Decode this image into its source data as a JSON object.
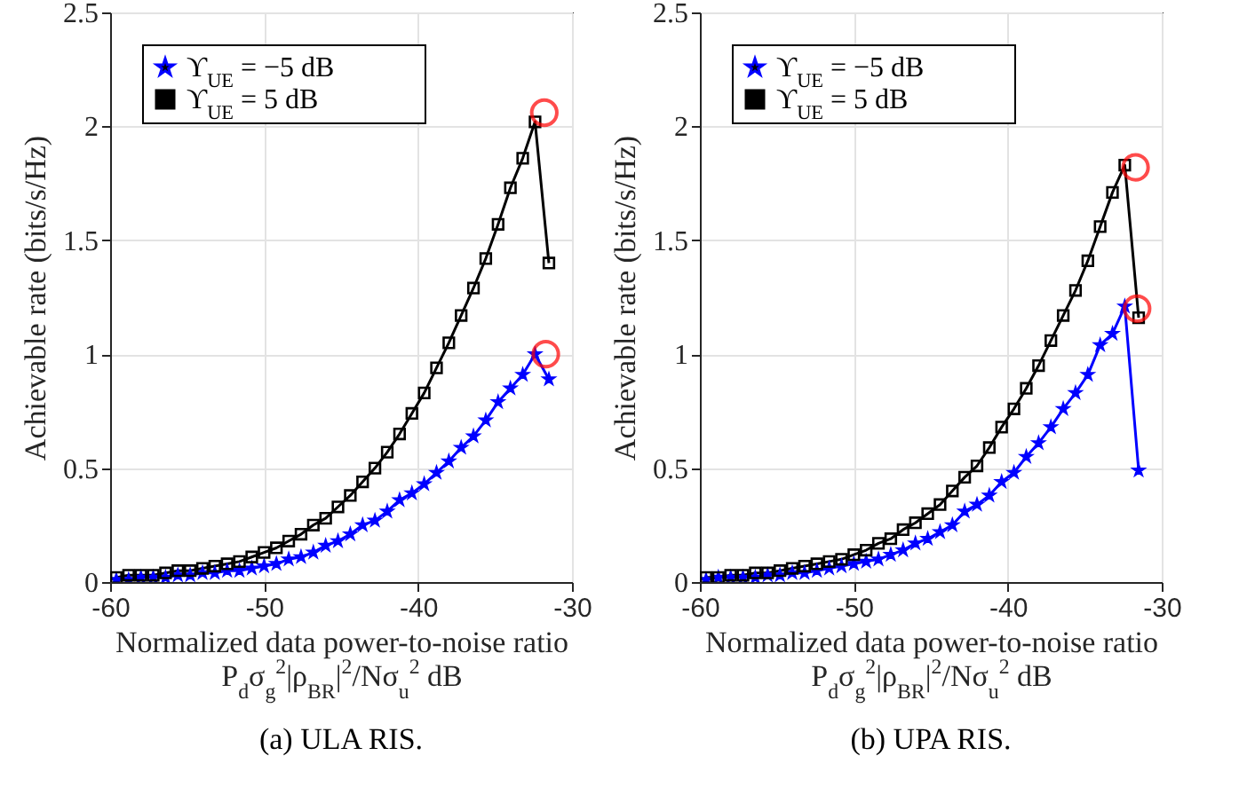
{
  "chart_data": [
    {
      "type": "line",
      "title": "(a) ULA RIS.",
      "xlabel": "Normalized data power-to-noise ratio\nP$_{d}$σ$_{g}$$^{2}$|ρ$_{BR}$|$^{2}$/Nσ$_{u}$$^{2}$ dB",
      "ylabel": "Achievable rate (bits/s/Hz)",
      "xlim": [
        -60,
        -30
      ],
      "xticks": [
        -60,
        -50,
        -40,
        -30
      ],
      "ylim": [
        0,
        2.5
      ],
      "yticks": [
        0,
        0.5,
        1,
        1.5,
        2,
        2.5
      ],
      "grid": true,
      "legend": "top left",
      "x": [
        -59.6,
        -58.8,
        -58,
        -57.2,
        -56.4,
        -55.6,
        -54.8,
        -54,
        -53.2,
        -52.4,
        -51.6,
        -50.8,
        -50,
        -49.2,
        -48.4,
        -47.6,
        -46.8,
        -46,
        -45.2,
        -44.4,
        -43.6,
        -42.8,
        -42,
        -41.2,
        -40.4,
        -39.6,
        -38.8,
        -38,
        -37.2,
        -36.4,
        -35.6,
        -34.8,
        -34,
        -33.2,
        -32.4,
        -31.5
      ],
      "series": [
        {
          "name": "ϒ$_{UE}$ = −5 dB",
          "color": "#0000ff",
          "marker": "star",
          "values": [
            0.01,
            0.01,
            0.02,
            0.02,
            0.02,
            0.03,
            0.03,
            0.04,
            0.04,
            0.05,
            0.05,
            0.06,
            0.07,
            0.08,
            0.1,
            0.11,
            0.13,
            0.16,
            0.18,
            0.21,
            0.25,
            0.27,
            0.31,
            0.36,
            0.39,
            0.43,
            0.48,
            0.53,
            0.59,
            0.64,
            0.71,
            0.79,
            0.85,
            0.91,
            1.0,
            0.89
          ]
        },
        {
          "name": "ϒ$_{UE}$ = 5 dB",
          "color": "#000000",
          "marker": "square",
          "values": [
            0.02,
            0.03,
            0.03,
            0.03,
            0.04,
            0.05,
            0.05,
            0.06,
            0.07,
            0.08,
            0.09,
            0.11,
            0.13,
            0.15,
            0.18,
            0.21,
            0.25,
            0.28,
            0.33,
            0.38,
            0.44,
            0.5,
            0.57,
            0.65,
            0.74,
            0.83,
            0.94,
            1.05,
            1.17,
            1.29,
            1.42,
            1.57,
            1.73,
            1.86,
            2.02,
            1.4
          ]
        },
        {
          "type": "scatter",
          "color": "#ff0000",
          "marker": "circle",
          "x": [
            -31.8,
            -31.7
          ],
          "values": [
            2.06,
            1.0
          ]
        }
      ]
    },
    {
      "type": "line",
      "title": "(b) UPA RIS.",
      "xlabel": "Normalized data power-to-noise ratio\nP$_{d}$σ$_{g}$$^{2}$|ρ$_{BR}$|$^{2}$/Nσ$_{u}$$^{2}$ dB",
      "ylabel": "Achievable rate (bits/s/Hz)",
      "xlim": [
        -60,
        -30
      ],
      "xticks": [
        -60,
        -50,
        -40,
        -30
      ],
      "ylim": [
        0,
        2.5
      ],
      "yticks": [
        0,
        0.5,
        1,
        1.5,
        2,
        2.5
      ],
      "grid": true,
      "legend": "top left",
      "x": [
        -59.6,
        -58.8,
        -58,
        -57.2,
        -56.4,
        -55.6,
        -54.8,
        -54,
        -53.2,
        -52.4,
        -51.6,
        -50.8,
        -50,
        -49.2,
        -48.4,
        -47.6,
        -46.8,
        -46,
        -45.2,
        -44.4,
        -43.6,
        -42.8,
        -42,
        -41.2,
        -40.4,
        -39.6,
        -38.8,
        -38,
        -37.2,
        -36.4,
        -35.6,
        -34.8,
        -34,
        -33.2,
        -32.4,
        -31.5
      ],
      "series": [
        {
          "name": "ϒ$_{UE}$ = −5 dB",
          "color": "#0000ff",
          "marker": "star",
          "values": [
            0.01,
            0.02,
            0.02,
            0.02,
            0.02,
            0.03,
            0.03,
            0.04,
            0.04,
            0.05,
            0.06,
            0.07,
            0.08,
            0.09,
            0.1,
            0.12,
            0.14,
            0.17,
            0.19,
            0.22,
            0.25,
            0.31,
            0.34,
            0.38,
            0.44,
            0.48,
            0.55,
            0.61,
            0.68,
            0.76,
            0.83,
            0.91,
            1.04,
            1.09,
            1.21,
            0.49
          ]
        },
        {
          "name": "ϒ$_{UE}$ = 5 dB",
          "color": "#000000",
          "marker": "square",
          "values": [
            0.02,
            0.02,
            0.03,
            0.03,
            0.04,
            0.04,
            0.05,
            0.06,
            0.07,
            0.08,
            0.09,
            0.1,
            0.12,
            0.14,
            0.17,
            0.19,
            0.23,
            0.26,
            0.3,
            0.34,
            0.4,
            0.46,
            0.51,
            0.59,
            0.68,
            0.76,
            0.85,
            0.95,
            1.06,
            1.17,
            1.28,
            1.41,
            1.56,
            1.71,
            1.83,
            1.16
          ]
        },
        {
          "type": "scatter",
          "color": "#ff0000",
          "marker": "circle",
          "x": [
            -31.7,
            -31.6
          ],
          "values": [
            1.82,
            1.2
          ]
        }
      ]
    }
  ]
}
